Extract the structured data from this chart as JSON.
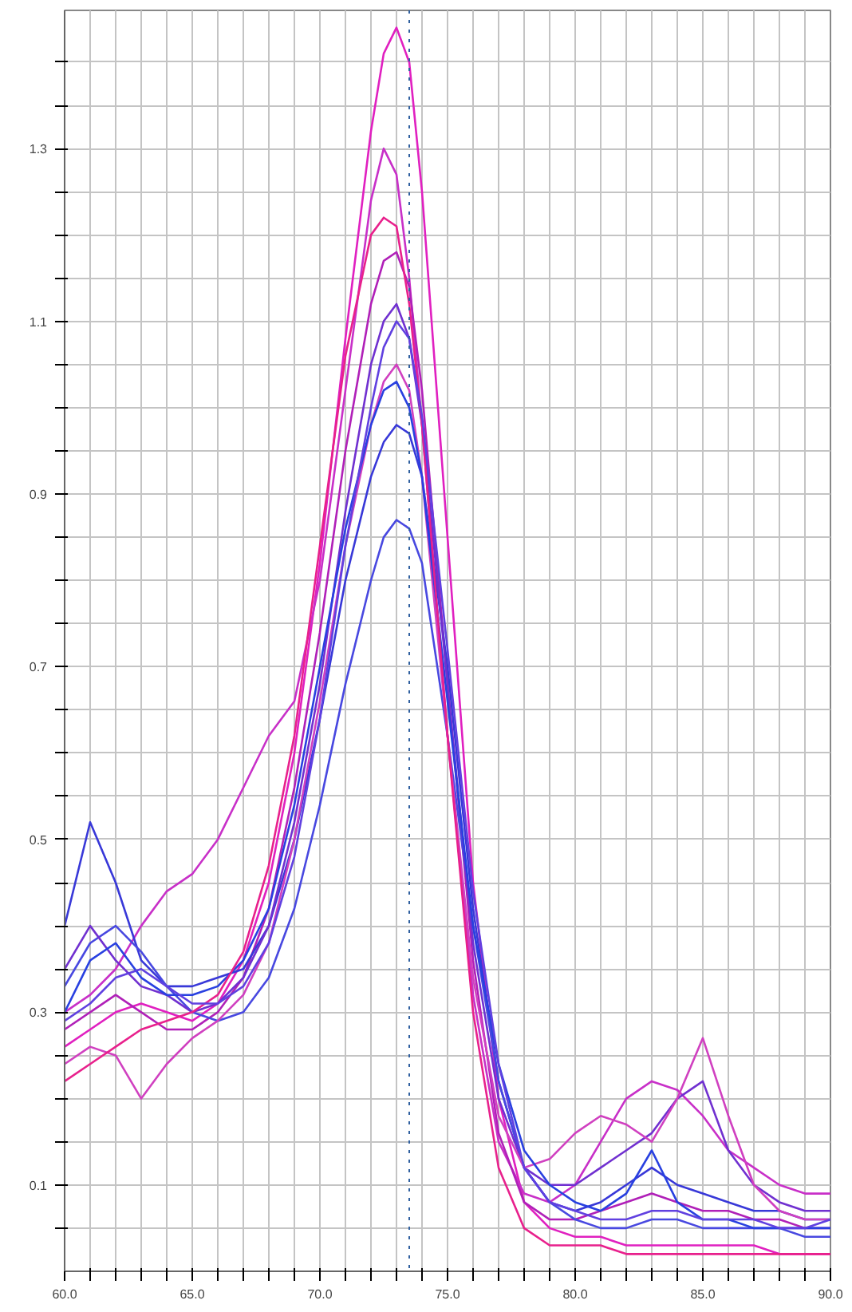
{
  "chart_data": {
    "type": "line",
    "x": [
      60,
      61,
      62,
      63,
      64,
      65,
      66,
      67,
      68,
      69,
      70,
      71,
      72,
      72.5,
      73,
      73.5,
      74,
      75,
      76,
      77,
      78,
      79,
      80,
      81,
      82,
      83,
      84,
      85,
      86,
      87,
      88,
      89,
      90
    ],
    "series": [
      {
        "color": "#e020c0",
        "values": [
          0.26,
          0.28,
          0.3,
          0.31,
          0.3,
          0.29,
          0.31,
          0.36,
          0.45,
          0.6,
          0.82,
          1.08,
          1.32,
          1.41,
          1.44,
          1.4,
          1.25,
          0.85,
          0.45,
          0.2,
          0.08,
          0.05,
          0.04,
          0.04,
          0.03,
          0.03,
          0.03,
          0.03,
          0.03,
          0.03,
          0.02,
          0.02,
          0.02
        ]
      },
      {
        "color": "#c830c8",
        "values": [
          0.3,
          0.32,
          0.35,
          0.4,
          0.44,
          0.46,
          0.5,
          0.56,
          0.62,
          0.66,
          0.8,
          1.02,
          1.24,
          1.3,
          1.27,
          1.15,
          0.98,
          0.62,
          0.32,
          0.15,
          0.09,
          0.08,
          0.1,
          0.15,
          0.2,
          0.22,
          0.21,
          0.18,
          0.14,
          0.12,
          0.1,
          0.09,
          0.09
        ]
      },
      {
        "color": "#b020b8",
        "values": [
          0.28,
          0.3,
          0.32,
          0.3,
          0.28,
          0.28,
          0.3,
          0.34,
          0.42,
          0.56,
          0.74,
          0.95,
          1.12,
          1.17,
          1.18,
          1.14,
          1.02,
          0.68,
          0.36,
          0.16,
          0.08,
          0.06,
          0.06,
          0.07,
          0.08,
          0.09,
          0.08,
          0.07,
          0.07,
          0.06,
          0.06,
          0.05,
          0.05
        ]
      },
      {
        "color": "#3838d8",
        "values": [
          0.4,
          0.52,
          0.45,
          0.36,
          0.33,
          0.33,
          0.34,
          0.35,
          0.4,
          0.5,
          0.64,
          0.8,
          0.92,
          0.96,
          0.98,
          0.97,
          0.92,
          0.7,
          0.42,
          0.22,
          0.12,
          0.08,
          0.07,
          0.08,
          0.1,
          0.12,
          0.1,
          0.09,
          0.08,
          0.07,
          0.07,
          0.06,
          0.06
        ]
      },
      {
        "color": "#4848e0",
        "values": [
          0.33,
          0.38,
          0.4,
          0.37,
          0.33,
          0.3,
          0.29,
          0.3,
          0.34,
          0.42,
          0.54,
          0.68,
          0.8,
          0.85,
          0.87,
          0.86,
          0.82,
          0.62,
          0.4,
          0.22,
          0.12,
          0.08,
          0.06,
          0.05,
          0.05,
          0.06,
          0.06,
          0.05,
          0.05,
          0.05,
          0.05,
          0.04,
          0.04
        ]
      },
      {
        "color": "#7030d0",
        "values": [
          0.35,
          0.4,
          0.36,
          0.33,
          0.32,
          0.3,
          0.31,
          0.34,
          0.4,
          0.52,
          0.68,
          0.88,
          1.05,
          1.1,
          1.12,
          1.08,
          0.98,
          0.68,
          0.38,
          0.2,
          0.12,
          0.1,
          0.1,
          0.12,
          0.14,
          0.16,
          0.2,
          0.22,
          0.14,
          0.1,
          0.08,
          0.07,
          0.07
        ]
      },
      {
        "color": "#d040c0",
        "values": [
          0.24,
          0.26,
          0.25,
          0.2,
          0.24,
          0.27,
          0.29,
          0.32,
          0.38,
          0.5,
          0.66,
          0.84,
          0.98,
          1.03,
          1.05,
          1.02,
          0.92,
          0.62,
          0.34,
          0.18,
          0.12,
          0.13,
          0.16,
          0.18,
          0.17,
          0.15,
          0.2,
          0.27,
          0.18,
          0.1,
          0.07,
          0.06,
          0.06
        ]
      },
      {
        "color": "#2840e0",
        "values": [
          0.3,
          0.36,
          0.38,
          0.34,
          0.32,
          0.32,
          0.33,
          0.36,
          0.42,
          0.54,
          0.7,
          0.86,
          0.98,
          1.02,
          1.03,
          1.0,
          0.92,
          0.66,
          0.4,
          0.24,
          0.14,
          0.1,
          0.08,
          0.07,
          0.09,
          0.14,
          0.08,
          0.06,
          0.06,
          0.05,
          0.05,
          0.05,
          0.05
        ]
      },
      {
        "color": "#e8208c",
        "values": [
          0.22,
          0.24,
          0.26,
          0.28,
          0.29,
          0.3,
          0.32,
          0.37,
          0.47,
          0.62,
          0.84,
          1.06,
          1.2,
          1.22,
          1.21,
          1.12,
          0.98,
          0.62,
          0.3,
          0.12,
          0.05,
          0.03,
          0.03,
          0.03,
          0.02,
          0.02,
          0.02,
          0.02,
          0.02,
          0.02,
          0.02,
          0.02,
          0.02
        ]
      },
      {
        "color": "#6040e0",
        "values": [
          0.29,
          0.31,
          0.34,
          0.35,
          0.33,
          0.31,
          0.31,
          0.33,
          0.38,
          0.48,
          0.64,
          0.84,
          1.0,
          1.07,
          1.1,
          1.08,
          0.99,
          0.72,
          0.44,
          0.24,
          0.12,
          0.08,
          0.07,
          0.06,
          0.06,
          0.07,
          0.07,
          0.06,
          0.06,
          0.06,
          0.05,
          0.05,
          0.06
        ]
      }
    ],
    "xlim": [
      60,
      90
    ],
    "ylim": [
      0,
      1.46
    ],
    "xticks": [
      {
        "value": 60,
        "label": "60.0"
      },
      {
        "value": 61,
        "label": null
      },
      {
        "value": 62,
        "label": null
      },
      {
        "value": 63,
        "label": null
      },
      {
        "value": 64,
        "label": null
      },
      {
        "value": 65,
        "label": "65.0"
      },
      {
        "value": 66,
        "label": null
      },
      {
        "value": 67,
        "label": null
      },
      {
        "value": 68,
        "label": null
      },
      {
        "value": 69,
        "label": null
      },
      {
        "value": 70,
        "label": "70.0"
      },
      {
        "value": 71,
        "label": null
      },
      {
        "value": 72,
        "label": null
      },
      {
        "value": 73,
        "label": null
      },
      {
        "value": 74,
        "label": null
      },
      {
        "value": 75,
        "label": "75.0"
      },
      {
        "value": 76,
        "label": null
      },
      {
        "value": 77,
        "label": null
      },
      {
        "value": 78,
        "label": null
      },
      {
        "value": 79,
        "label": null
      },
      {
        "value": 80,
        "label": "80.0"
      },
      {
        "value": 81,
        "label": null
      },
      {
        "value": 82,
        "label": null
      },
      {
        "value": 83,
        "label": null
      },
      {
        "value": 84,
        "label": null
      },
      {
        "value": 85,
        "label": "85.0"
      },
      {
        "value": 86,
        "label": null
      },
      {
        "value": 87,
        "label": null
      },
      {
        "value": 88,
        "label": null
      },
      {
        "value": 89,
        "label": null
      },
      {
        "value": 90,
        "label": "90.0"
      }
    ],
    "yticks": [
      {
        "value": 0.05,
        "label": null
      },
      0.1,
      {
        "value": 0.15,
        "label": null
      },
      {
        "value": 0.2,
        "label": null
      },
      {
        "value": 0.25,
        "label": null
      },
      0.3,
      {
        "value": 0.35,
        "label": null
      },
      {
        "value": 0.4,
        "label": null
      },
      {
        "value": 0.45,
        "label": null
      },
      0.5,
      {
        "value": 0.55,
        "label": null
      },
      {
        "value": 0.6,
        "label": null
      },
      {
        "value": 0.65,
        "label": null
      },
      0.7,
      {
        "value": 0.75,
        "label": null
      },
      {
        "value": 0.8,
        "label": null
      },
      {
        "value": 0.85,
        "label": null
      },
      0.9,
      {
        "value": 0.95,
        "label": null
      },
      {
        "value": 1.0,
        "label": null
      },
      {
        "value": 1.05,
        "label": null
      },
      1.1,
      {
        "value": 1.15,
        "label": null
      },
      {
        "value": 1.2,
        "label": null
      },
      {
        "value": 1.25,
        "label": null
      },
      1.3,
      {
        "value": 1.35,
        "label": null
      },
      {
        "value": 1.4,
        "label": null
      }
    ],
    "grid": true,
    "ref_lines": [
      {
        "axis": "x",
        "value": 73.5,
        "color": "#3060a0",
        "line_style": "dotted"
      }
    ]
  }
}
